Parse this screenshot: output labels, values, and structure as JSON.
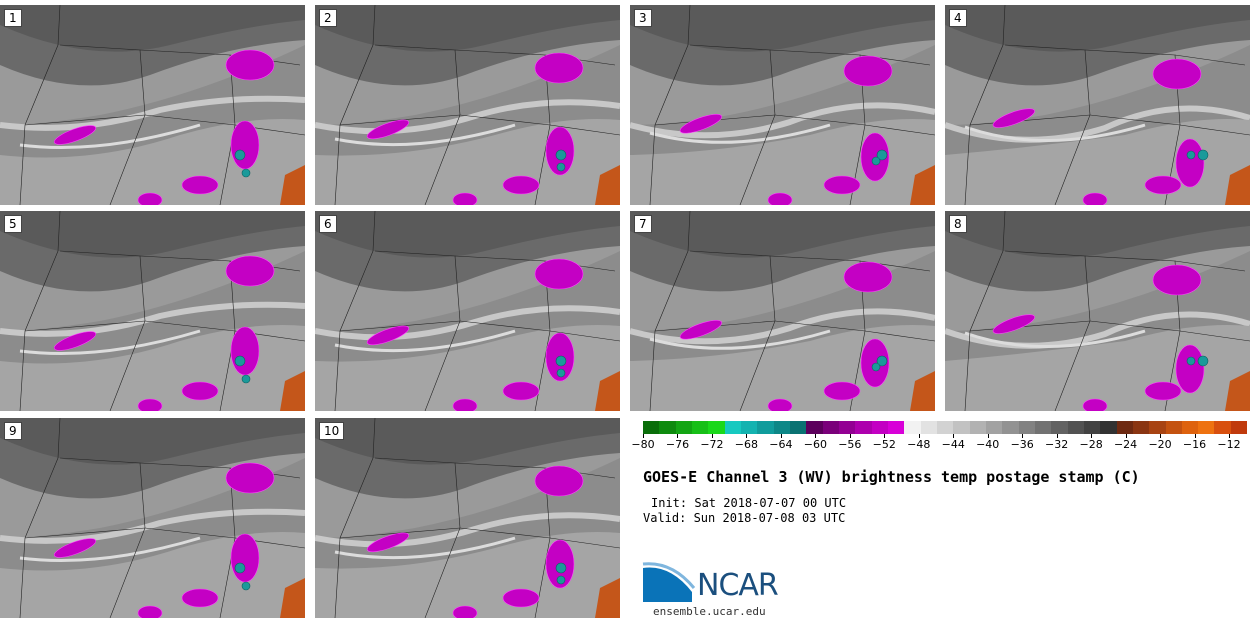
{
  "panels": [
    {
      "label": "1"
    },
    {
      "label": "2"
    },
    {
      "label": "3"
    },
    {
      "label": "4"
    },
    {
      "label": "5"
    },
    {
      "label": "6"
    },
    {
      "label": "7"
    },
    {
      "label": "8"
    },
    {
      "label": "9"
    },
    {
      "label": "10"
    }
  ],
  "colorbar": {
    "colors": [
      "#0a6e0a",
      "#0e8a0e",
      "#13a513",
      "#17bf17",
      "#1ad81a",
      "#16c9c0",
      "#13b3b0",
      "#109c9c",
      "#0d8787",
      "#0a7272",
      "#5c005c",
      "#7a007a",
      "#930093",
      "#ad00ad",
      "#c300c3",
      "#d800d8",
      "#f2f2f2",
      "#e2e2e2",
      "#d2d2d2",
      "#c2c2c2",
      "#b2b2b2",
      "#a2a2a2",
      "#929292",
      "#828282",
      "#727272",
      "#626262",
      "#525252",
      "#424242",
      "#323232",
      "#6e2a12",
      "#8a3512",
      "#a84312",
      "#c45210",
      "#de620e",
      "#ee7210",
      "#d8500e",
      "#c03a0c"
    ],
    "ticks": [
      "−80",
      "−76",
      "−72",
      "−68",
      "−64",
      "−60",
      "−56",
      "−52",
      "−48",
      "−44",
      "−40",
      "−36",
      "−32",
      "−28",
      "−24",
      "−20",
      "−16",
      "−12"
    ]
  },
  "title": "GOES-E Channel 3 (WV) brightness temp postage stamp (C)",
  "init": "Init: Sat 2018-07-07 00 UTC",
  "valid": "Valid: Sun 2018-07-08 03 UTC",
  "logo_text": "NCAR",
  "url": "ensemble.ucar.edu"
}
